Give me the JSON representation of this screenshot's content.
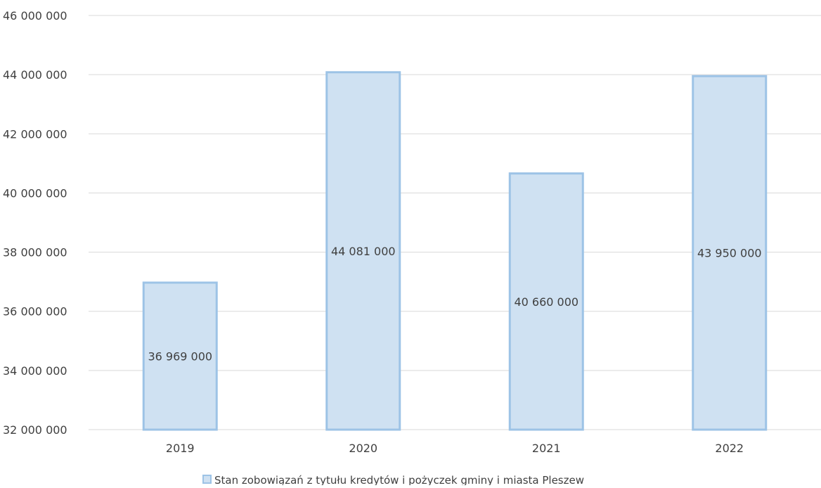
{
  "chart_data": {
    "type": "bar",
    "categories": [
      "2019",
      "2020",
      "2021",
      "2022"
    ],
    "series": [
      {
        "name": "Stan zobowiązań z tytułu kredytów i pożyczek gminy i miasta Pleszew",
        "values": [
          36969000,
          44081000,
          40660000,
          43950000
        ],
        "data_labels": [
          "36 969 000",
          "44 081 000",
          "40 660 000",
          "43 950 000"
        ]
      }
    ],
    "ylim": [
      32000000,
      46000000
    ],
    "y_ticks": [
      32000000,
      34000000,
      36000000,
      38000000,
      40000000,
      42000000,
      44000000,
      46000000
    ],
    "y_tick_labels": [
      "32 000 000",
      "34 000 000",
      "36 000 000",
      "38 000 000",
      "40 000 000",
      "42 000 000",
      "44 000 000",
      "46 000 000"
    ],
    "grid": true,
    "legend_position": "bottom",
    "colors": {
      "bar_fill": "#cfe1f2",
      "bar_stroke": "#9dc3e6",
      "grid": "#d9d9d9",
      "text": "#404040"
    }
  }
}
